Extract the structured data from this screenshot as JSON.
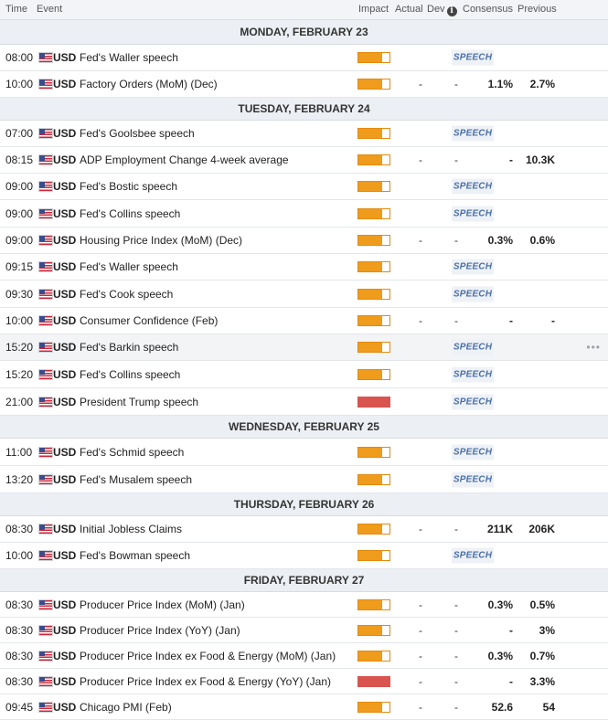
{
  "header": {
    "time": "Time",
    "event": "Event",
    "impact": "Impact",
    "actual": "Actual",
    "dev": "Dev",
    "info_icon": "i",
    "consensus": "Consensus",
    "previous": "Previous"
  },
  "speech_label": "SPEECH",
  "colors": {
    "medium_impact": "#ef9b1c",
    "high_impact": "#d9534f",
    "speech_text": "#4a6fa5"
  },
  "days": [
    {
      "label": "MONDAY, FEBRUARY 23",
      "events": [
        {
          "time": "08:00",
          "currency": "USD",
          "event": "Fed's Waller speech",
          "impact": "medium",
          "speech": true
        },
        {
          "time": "10:00",
          "currency": "USD",
          "event": "Factory Orders (MoM) (Dec)",
          "impact": "medium",
          "actual": "-",
          "dev": "-",
          "consensus": "1.1%",
          "previous": "2.7%"
        }
      ]
    },
    {
      "label": "TUESDAY, FEBRUARY 24",
      "events": [
        {
          "time": "07:00",
          "currency": "USD",
          "event": "Fed's Goolsbee speech",
          "impact": "medium",
          "speech": true
        },
        {
          "time": "08:15",
          "currency": "USD",
          "event": "ADP Employment Change 4-week average",
          "impact": "medium",
          "actual": "-",
          "dev": "-",
          "consensus": "-",
          "previous": "10.3K"
        },
        {
          "time": "09:00",
          "currency": "USD",
          "event": "Fed's Bostic speech",
          "impact": "medium",
          "speech": true
        },
        {
          "time": "09:00",
          "currency": "USD",
          "event": "Fed's Collins speech",
          "impact": "medium",
          "speech": true
        },
        {
          "time": "09:00",
          "currency": "USD",
          "event": "Housing Price Index (MoM) (Dec)",
          "impact": "medium",
          "actual": "-",
          "dev": "-",
          "consensus": "0.3%",
          "previous": "0.6%"
        },
        {
          "time": "09:15",
          "currency": "USD",
          "event": "Fed's Waller speech",
          "impact": "medium",
          "speech": true
        },
        {
          "time": "09:30",
          "currency": "USD",
          "event": "Fed's Cook speech",
          "impact": "medium",
          "speech": true
        },
        {
          "time": "10:00",
          "currency": "USD",
          "event": "Consumer Confidence (Feb)",
          "impact": "medium",
          "actual": "-",
          "dev": "-",
          "consensus": "-",
          "previous": "-"
        },
        {
          "time": "15:20",
          "currency": "USD",
          "event": "Fed's Barkin speech",
          "impact": "medium",
          "speech": true,
          "hover": true,
          "more": "•••"
        },
        {
          "time": "15:20",
          "currency": "USD",
          "event": "Fed's Collins speech",
          "impact": "medium",
          "speech": true
        },
        {
          "time": "21:00",
          "currency": "USD",
          "event": "President Trump speech",
          "impact": "high",
          "speech": true
        }
      ]
    },
    {
      "label": "WEDNESDAY, FEBRUARY 25",
      "events": [
        {
          "time": "11:00",
          "currency": "USD",
          "event": "Fed's Schmid speech",
          "impact": "medium",
          "speech": true
        },
        {
          "time": "13:20",
          "currency": "USD",
          "event": "Fed's Musalem speech",
          "impact": "medium",
          "speech": true
        }
      ]
    },
    {
      "label": "THURSDAY, FEBRUARY 26",
      "events": [
        {
          "time": "08:30",
          "currency": "USD",
          "event": "Initial Jobless Claims",
          "impact": "medium",
          "actual": "-",
          "dev": "-",
          "consensus": "211K",
          "previous": "206K"
        },
        {
          "time": "10:00",
          "currency": "USD",
          "event": "Fed's Bowman speech",
          "impact": "medium",
          "speech": true
        }
      ]
    },
    {
      "label": "FRIDAY, FEBRUARY 27",
      "events": [
        {
          "time": "08:30",
          "currency": "USD",
          "event": "Producer Price Index (MoM) (Jan)",
          "impact": "medium",
          "actual": "-",
          "dev": "-",
          "consensus": "0.3%",
          "previous": "0.5%"
        },
        {
          "time": "08:30",
          "currency": "USD",
          "event": "Producer Price Index (YoY) (Jan)",
          "impact": "medium",
          "actual": "-",
          "dev": "-",
          "consensus": "-",
          "previous": "3%"
        },
        {
          "time": "08:30",
          "currency": "USD",
          "event": "Producer Price Index ex Food & Energy (MoM) (Jan)",
          "impact": "medium",
          "actual": "-",
          "dev": "-",
          "consensus": "0.3%",
          "previous": "0.7%"
        },
        {
          "time": "08:30",
          "currency": "USD",
          "event": "Producer Price Index ex Food & Energy (YoY) (Jan)",
          "impact": "high",
          "actual": "-",
          "dev": "-",
          "consensus": "-",
          "previous": "3.3%"
        },
        {
          "time": "09:45",
          "currency": "USD",
          "event": "Chicago PMI (Feb)",
          "impact": "medium",
          "actual": "-",
          "dev": "-",
          "consensus": "52.6",
          "previous": "54"
        }
      ]
    }
  ]
}
